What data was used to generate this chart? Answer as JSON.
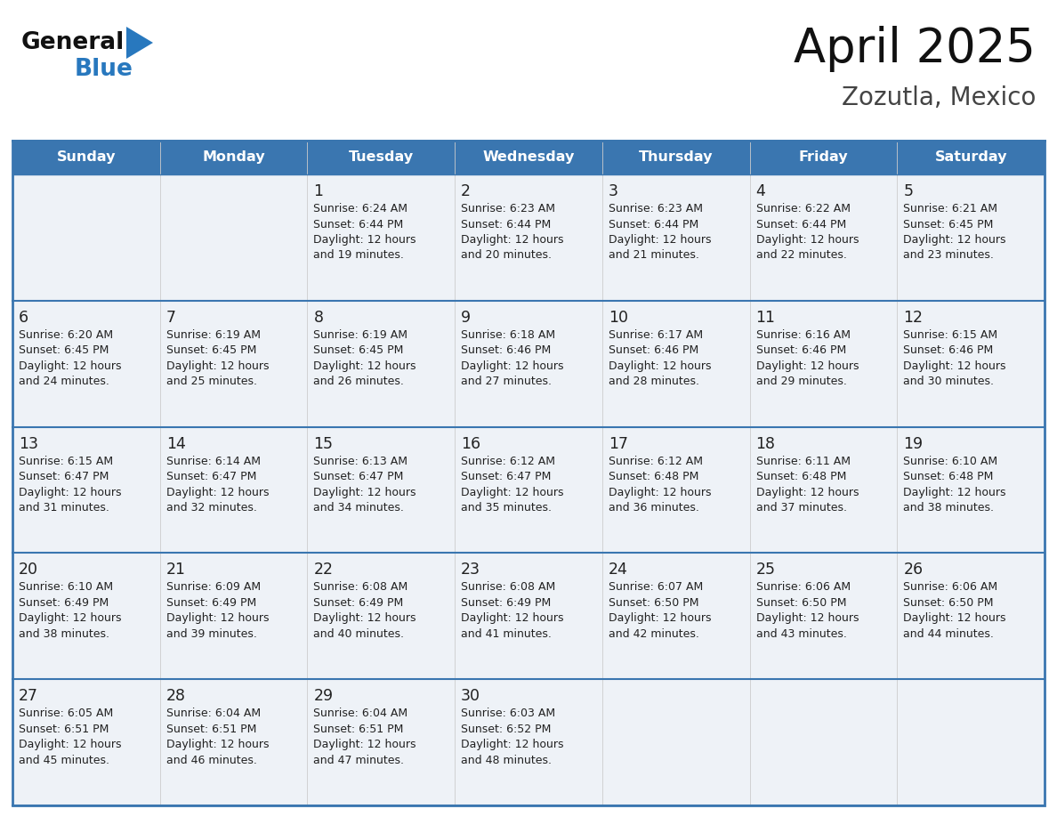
{
  "title": "April 2025",
  "subtitle": "Zozutla, Mexico",
  "header_color": "#3a76b0",
  "header_text_color": "#ffffff",
  "cell_bg_even": "#eef2f7",
  "cell_bg_odd": "#ffffff",
  "row_line_color": "#3a76b0",
  "col_line_color": "#cccccc",
  "outer_border_color": "#3a76b0",
  "text_color": "#222222",
  "days_of_week": [
    "Sunday",
    "Monday",
    "Tuesday",
    "Wednesday",
    "Thursday",
    "Friday",
    "Saturday"
  ],
  "logo_text1": "General",
  "logo_text2": "Blue",
  "logo_color1": "#111111",
  "logo_color2": "#2878be",
  "triangle_color": "#2878be",
  "title_color": "#111111",
  "subtitle_color": "#444444",
  "calendar": [
    [
      {
        "day": "",
        "sunrise": "",
        "sunset": "",
        "minutes": ""
      },
      {
        "day": "",
        "sunrise": "",
        "sunset": "",
        "minutes": ""
      },
      {
        "day": "1",
        "sunrise": "6:24 AM",
        "sunset": "6:44 PM",
        "minutes": "19"
      },
      {
        "day": "2",
        "sunrise": "6:23 AM",
        "sunset": "6:44 PM",
        "minutes": "20"
      },
      {
        "day": "3",
        "sunrise": "6:23 AM",
        "sunset": "6:44 PM",
        "minutes": "21"
      },
      {
        "day": "4",
        "sunrise": "6:22 AM",
        "sunset": "6:44 PM",
        "minutes": "22"
      },
      {
        "day": "5",
        "sunrise": "6:21 AM",
        "sunset": "6:45 PM",
        "minutes": "23"
      }
    ],
    [
      {
        "day": "6",
        "sunrise": "6:20 AM",
        "sunset": "6:45 PM",
        "minutes": "24"
      },
      {
        "day": "7",
        "sunrise": "6:19 AM",
        "sunset": "6:45 PM",
        "minutes": "25"
      },
      {
        "day": "8",
        "sunrise": "6:19 AM",
        "sunset": "6:45 PM",
        "minutes": "26"
      },
      {
        "day": "9",
        "sunrise": "6:18 AM",
        "sunset": "6:46 PM",
        "minutes": "27"
      },
      {
        "day": "10",
        "sunrise": "6:17 AM",
        "sunset": "6:46 PM",
        "minutes": "28"
      },
      {
        "day": "11",
        "sunrise": "6:16 AM",
        "sunset": "6:46 PM",
        "minutes": "29"
      },
      {
        "day": "12",
        "sunrise": "6:15 AM",
        "sunset": "6:46 PM",
        "minutes": "30"
      }
    ],
    [
      {
        "day": "13",
        "sunrise": "6:15 AM",
        "sunset": "6:47 PM",
        "minutes": "31"
      },
      {
        "day": "14",
        "sunrise": "6:14 AM",
        "sunset": "6:47 PM",
        "minutes": "32"
      },
      {
        "day": "15",
        "sunrise": "6:13 AM",
        "sunset": "6:47 PM",
        "minutes": "34"
      },
      {
        "day": "16",
        "sunrise": "6:12 AM",
        "sunset": "6:47 PM",
        "minutes": "35"
      },
      {
        "day": "17",
        "sunrise": "6:12 AM",
        "sunset": "6:48 PM",
        "minutes": "36"
      },
      {
        "day": "18",
        "sunrise": "6:11 AM",
        "sunset": "6:48 PM",
        "minutes": "37"
      },
      {
        "day": "19",
        "sunrise": "6:10 AM",
        "sunset": "6:48 PM",
        "minutes": "38"
      }
    ],
    [
      {
        "day": "20",
        "sunrise": "6:10 AM",
        "sunset": "6:49 PM",
        "minutes": "38"
      },
      {
        "day": "21",
        "sunrise": "6:09 AM",
        "sunset": "6:49 PM",
        "minutes": "39"
      },
      {
        "day": "22",
        "sunrise": "6:08 AM",
        "sunset": "6:49 PM",
        "minutes": "40"
      },
      {
        "day": "23",
        "sunrise": "6:08 AM",
        "sunset": "6:49 PM",
        "minutes": "41"
      },
      {
        "day": "24",
        "sunrise": "6:07 AM",
        "sunset": "6:50 PM",
        "minutes": "42"
      },
      {
        "day": "25",
        "sunrise": "6:06 AM",
        "sunset": "6:50 PM",
        "minutes": "43"
      },
      {
        "day": "26",
        "sunrise": "6:06 AM",
        "sunset": "6:50 PM",
        "minutes": "44"
      }
    ],
    [
      {
        "day": "27",
        "sunrise": "6:05 AM",
        "sunset": "6:51 PM",
        "minutes": "45"
      },
      {
        "day": "28",
        "sunrise": "6:04 AM",
        "sunset": "6:51 PM",
        "minutes": "46"
      },
      {
        "day": "29",
        "sunrise": "6:04 AM",
        "sunset": "6:51 PM",
        "minutes": "47"
      },
      {
        "day": "30",
        "sunrise": "6:03 AM",
        "sunset": "6:52 PM",
        "minutes": "48"
      },
      {
        "day": "",
        "sunrise": "",
        "sunset": "",
        "minutes": ""
      },
      {
        "day": "",
        "sunrise": "",
        "sunset": "",
        "minutes": ""
      },
      {
        "day": "",
        "sunrise": "",
        "sunset": "",
        "minutes": ""
      }
    ]
  ]
}
